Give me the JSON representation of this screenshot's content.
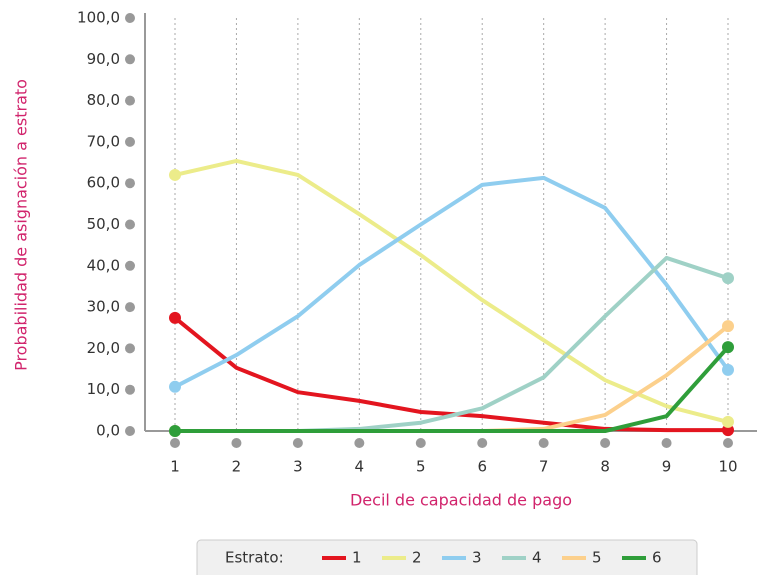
{
  "chart_data": {
    "type": "line",
    "x_label": "Decil de capacidad de pago",
    "y_label": "Probabilidad de asignación a estrato",
    "categories": [
      "1",
      "2",
      "3",
      "4",
      "5",
      "6",
      "7",
      "8",
      "9",
      "10"
    ],
    "ylim": [
      0,
      100
    ],
    "yticks": [
      {
        "value": 0,
        "label": "0,0"
      },
      {
        "value": 10,
        "label": "10,0"
      },
      {
        "value": 20,
        "label": "20,0"
      },
      {
        "value": 30,
        "label": "30,0"
      },
      {
        "value": 40,
        "label": "40,0"
      },
      {
        "value": 50,
        "label": "50,0"
      },
      {
        "value": 60,
        "label": "60,0"
      },
      {
        "value": 70,
        "label": "70,0"
      },
      {
        "value": 80,
        "label": "80,0"
      },
      {
        "value": 90,
        "label": "90,0"
      },
      {
        "value": 100,
        "label": "100,0"
      }
    ],
    "legend_title": "Estrato:",
    "series": [
      {
        "name": "1",
        "color": "#e3151f",
        "values": [
          27.4,
          15.3,
          9.4,
          7.3,
          4.6,
          3.6,
          2,
          0.5,
          0.2,
          0.2
        ]
      },
      {
        "name": "2",
        "color": "#ecec8a",
        "values": [
          62,
          65.4,
          62,
          52.5,
          42.6,
          31.7,
          22,
          12.3,
          6,
          2.2
        ]
      },
      {
        "name": "3",
        "color": "#8fcdef",
        "values": [
          10.7,
          18.4,
          27.8,
          40.2,
          50,
          59.6,
          61.3,
          54,
          35.4,
          14.8
        ]
      },
      {
        "name": "4",
        "color": "#9fd1c6",
        "values": [
          0,
          0,
          0,
          0.5,
          2,
          5.5,
          13,
          27.8,
          41.9,
          37
        ]
      },
      {
        "name": "5",
        "color": "#fcd08c",
        "values": [
          0,
          0,
          0,
          0,
          0,
          0,
          0.5,
          3.9,
          13.5,
          25.4
        ]
      },
      {
        "name": "6",
        "color": "#2f9e3a",
        "values": [
          0,
          0,
          0,
          0,
          0,
          0,
          0,
          0,
          3.6,
          20.3
        ]
      }
    ]
  }
}
